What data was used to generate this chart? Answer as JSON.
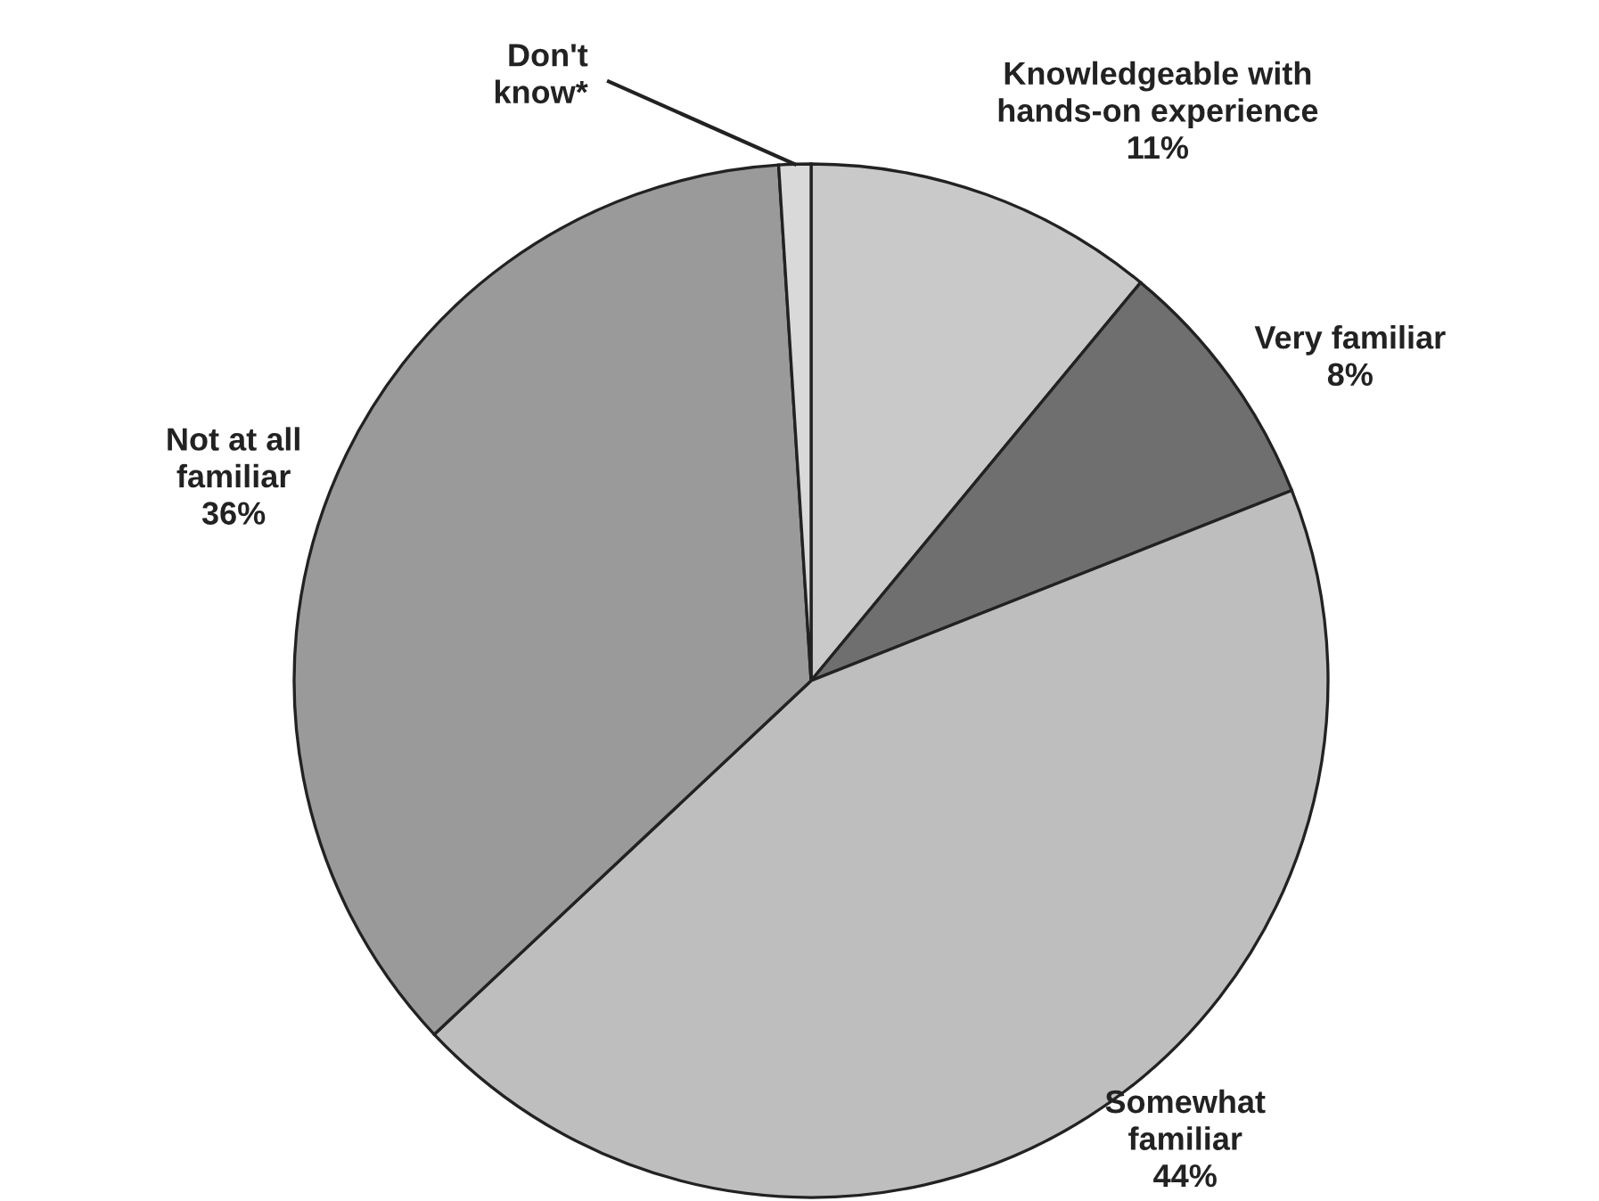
{
  "chart_data": {
    "type": "pie",
    "categories": [
      "Knowledgeable with\nhands-on experience",
      "Very familiar",
      "Somewhat\nfamiliar",
      "Not at all\nfamiliar",
      "Don't\nknow*"
    ],
    "values": [
      11,
      8,
      44,
      36,
      1
    ],
    "value_labels": [
      "11%",
      "8%",
      "44%",
      "36%",
      null
    ],
    "colors": [
      "#c9c9c9",
      "#6f6f6f",
      "#bebebe",
      "#9a9a9a",
      "#d9d9d9"
    ]
  }
}
